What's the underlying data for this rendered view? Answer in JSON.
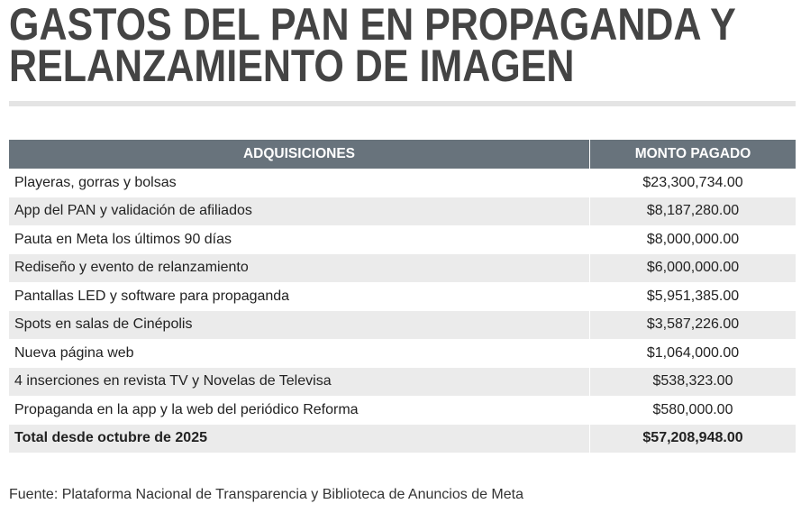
{
  "header": {
    "title_lines": [
      "GASTOS DEL PAN EN PROPAGANDA Y",
      "RELANZAMIENTO DE IMAGEN"
    ]
  },
  "table": {
    "columns": [
      "ADQUISICIONES",
      "MONTO PAGADO"
    ],
    "rows": [
      [
        "Playeras, gorras y bolsas",
        "$23,300,734.00"
      ],
      [
        "App del PAN y validación de afiliados",
        "$8,187,280.00"
      ],
      [
        "Pauta en Meta los últimos 90 días",
        "$8,000,000.00"
      ],
      [
        "Rediseño y evento de relanzamiento",
        "$6,000,000.00"
      ],
      [
        "Pantallas LED y software para propaganda",
        "$5,951,385.00"
      ],
      [
        "Spots en salas de Cinépolis",
        "$3,587,226.00"
      ],
      [
        "Nueva página web",
        "$1,064,000.00"
      ],
      [
        "4 inserciones en revista TV y Novelas de Televisa",
        "$538,323.00"
      ],
      [
        "Propaganda en la app y la web del periódico Reforma",
        "$580,000.00"
      ]
    ],
    "total": [
      "Total desde octubre de 2025",
      "$57,208,948.00"
    ]
  },
  "source": "Fuente: Plataforma Nacional de Transparencia y Biblioteca de Anuncios de Meta"
}
